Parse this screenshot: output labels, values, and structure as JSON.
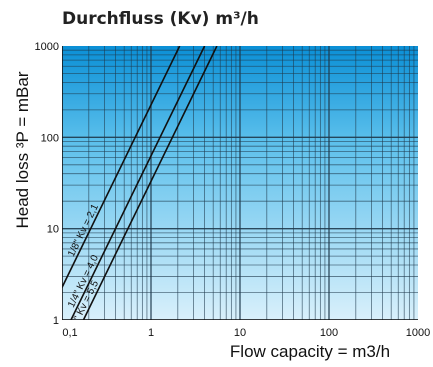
{
  "chart_data": {
    "type": "line",
    "title": "Durchfluss (Kv) m³/h",
    "xlabel": "Flow capacity = m3/h",
    "ylabel": "Head loss ³P = mBar",
    "xscale": "log",
    "yscale": "log",
    "xlim": [
      0.1,
      1000
    ],
    "ylim": [
      1,
      1000
    ],
    "x_ticks": [
      "0,1",
      "1",
      "10",
      "100",
      "1000"
    ],
    "y_ticks": [
      "1",
      "10",
      "100",
      "1000"
    ],
    "grid": true,
    "series": [
      {
        "name": "1/8\" Kv = 2,1",
        "x": [
          0.1,
          2.1
        ],
        "y": [
          2.27,
          1000
        ]
      },
      {
        "name": "1/4\" Kv = 4,0",
        "x": [
          0.1,
          4.0
        ],
        "y": [
          0.63,
          1000
        ]
      },
      {
        "name": "1/2\" Kv = 5,5",
        "x": [
          0.1,
          5.5
        ],
        "y": [
          0.33,
          1000
        ]
      }
    ],
    "colors": {
      "plot_top": "#0a8fd6",
      "plot_bottom": "#d9f0fb",
      "grid": "#1f3a4d",
      "line": "#111111"
    }
  }
}
